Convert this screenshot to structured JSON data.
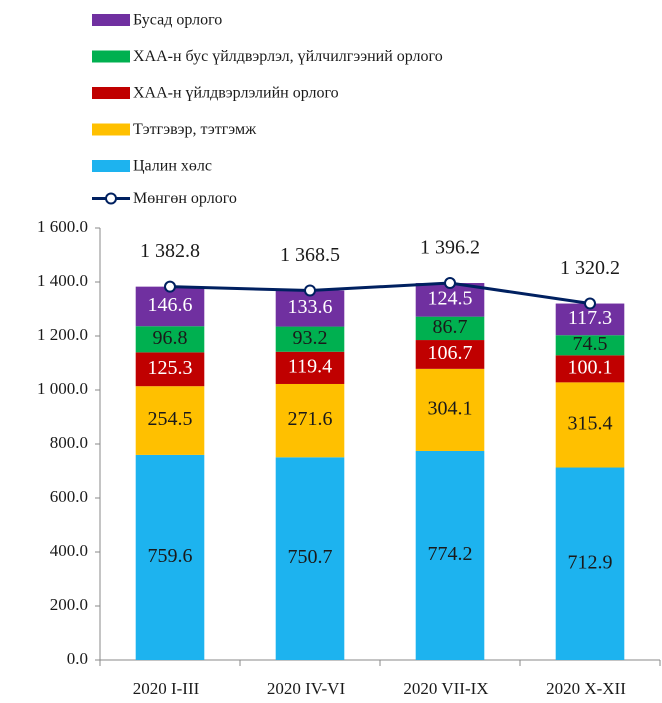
{
  "chart_data": {
    "type": "bar",
    "stacked": true,
    "categories": [
      "2020 I-III",
      "2020 IV-VI",
      "2020 VII-IX",
      "2020 X-XII"
    ],
    "series": [
      {
        "name": "Цалин хөлс",
        "color": "#1db3ef",
        "label_color": "#1a1a1a",
        "values": [
          759.6,
          750.7,
          774.2,
          712.9
        ]
      },
      {
        "name": "Тэтгэвэр, тэтгэмж",
        "color": "#ffc000",
        "label_color": "#1a1a1a",
        "values": [
          254.5,
          271.6,
          304.1,
          315.4
        ]
      },
      {
        "name": "ХАА-н үйлдвэрлэлийн  орлого",
        "color": "#c00000",
        "label_color": "#ffffff",
        "values": [
          125.3,
          119.4,
          106.7,
          100.1
        ]
      },
      {
        "name": "ХАА-н бус үйлдвэрлэл,  үйлчилгээний орлого",
        "color": "#00b050",
        "label_color": "#1a1a1a",
        "values": [
          96.8,
          93.2,
          86.7,
          74.5
        ]
      },
      {
        "name": "Бусад орлого",
        "color": "#7030a0",
        "label_color": "#ffffff",
        "values": [
          146.6,
          133.6,
          124.5,
          117.3
        ]
      }
    ],
    "line": {
      "name": "Мөнгөн орлого",
      "type": "line",
      "color": "#002060",
      "values": [
        1382.8,
        1368.5,
        1396.2,
        1320.2
      ],
      "value_labels": [
        "1 382.8",
        "1 368.5",
        "1 396.2",
        "1 320.2"
      ]
    },
    "ylim": [
      0,
      1600
    ],
    "yticks": [
      {
        "value": 0,
        "label": "0.0"
      },
      {
        "value": 200,
        "label": "200.0"
      },
      {
        "value": 400,
        "label": "400.0"
      },
      {
        "value": 600,
        "label": "600.0"
      },
      {
        "value": 800,
        "label": "800.0"
      },
      {
        "value": 1000,
        "label": "1 000.0"
      },
      {
        "value": 1200,
        "label": "1 200.0"
      },
      {
        "value": 1400,
        "label": "1 400.0"
      },
      {
        "value": 1600,
        "label": "1 600.0"
      }
    ],
    "grid": false
  }
}
